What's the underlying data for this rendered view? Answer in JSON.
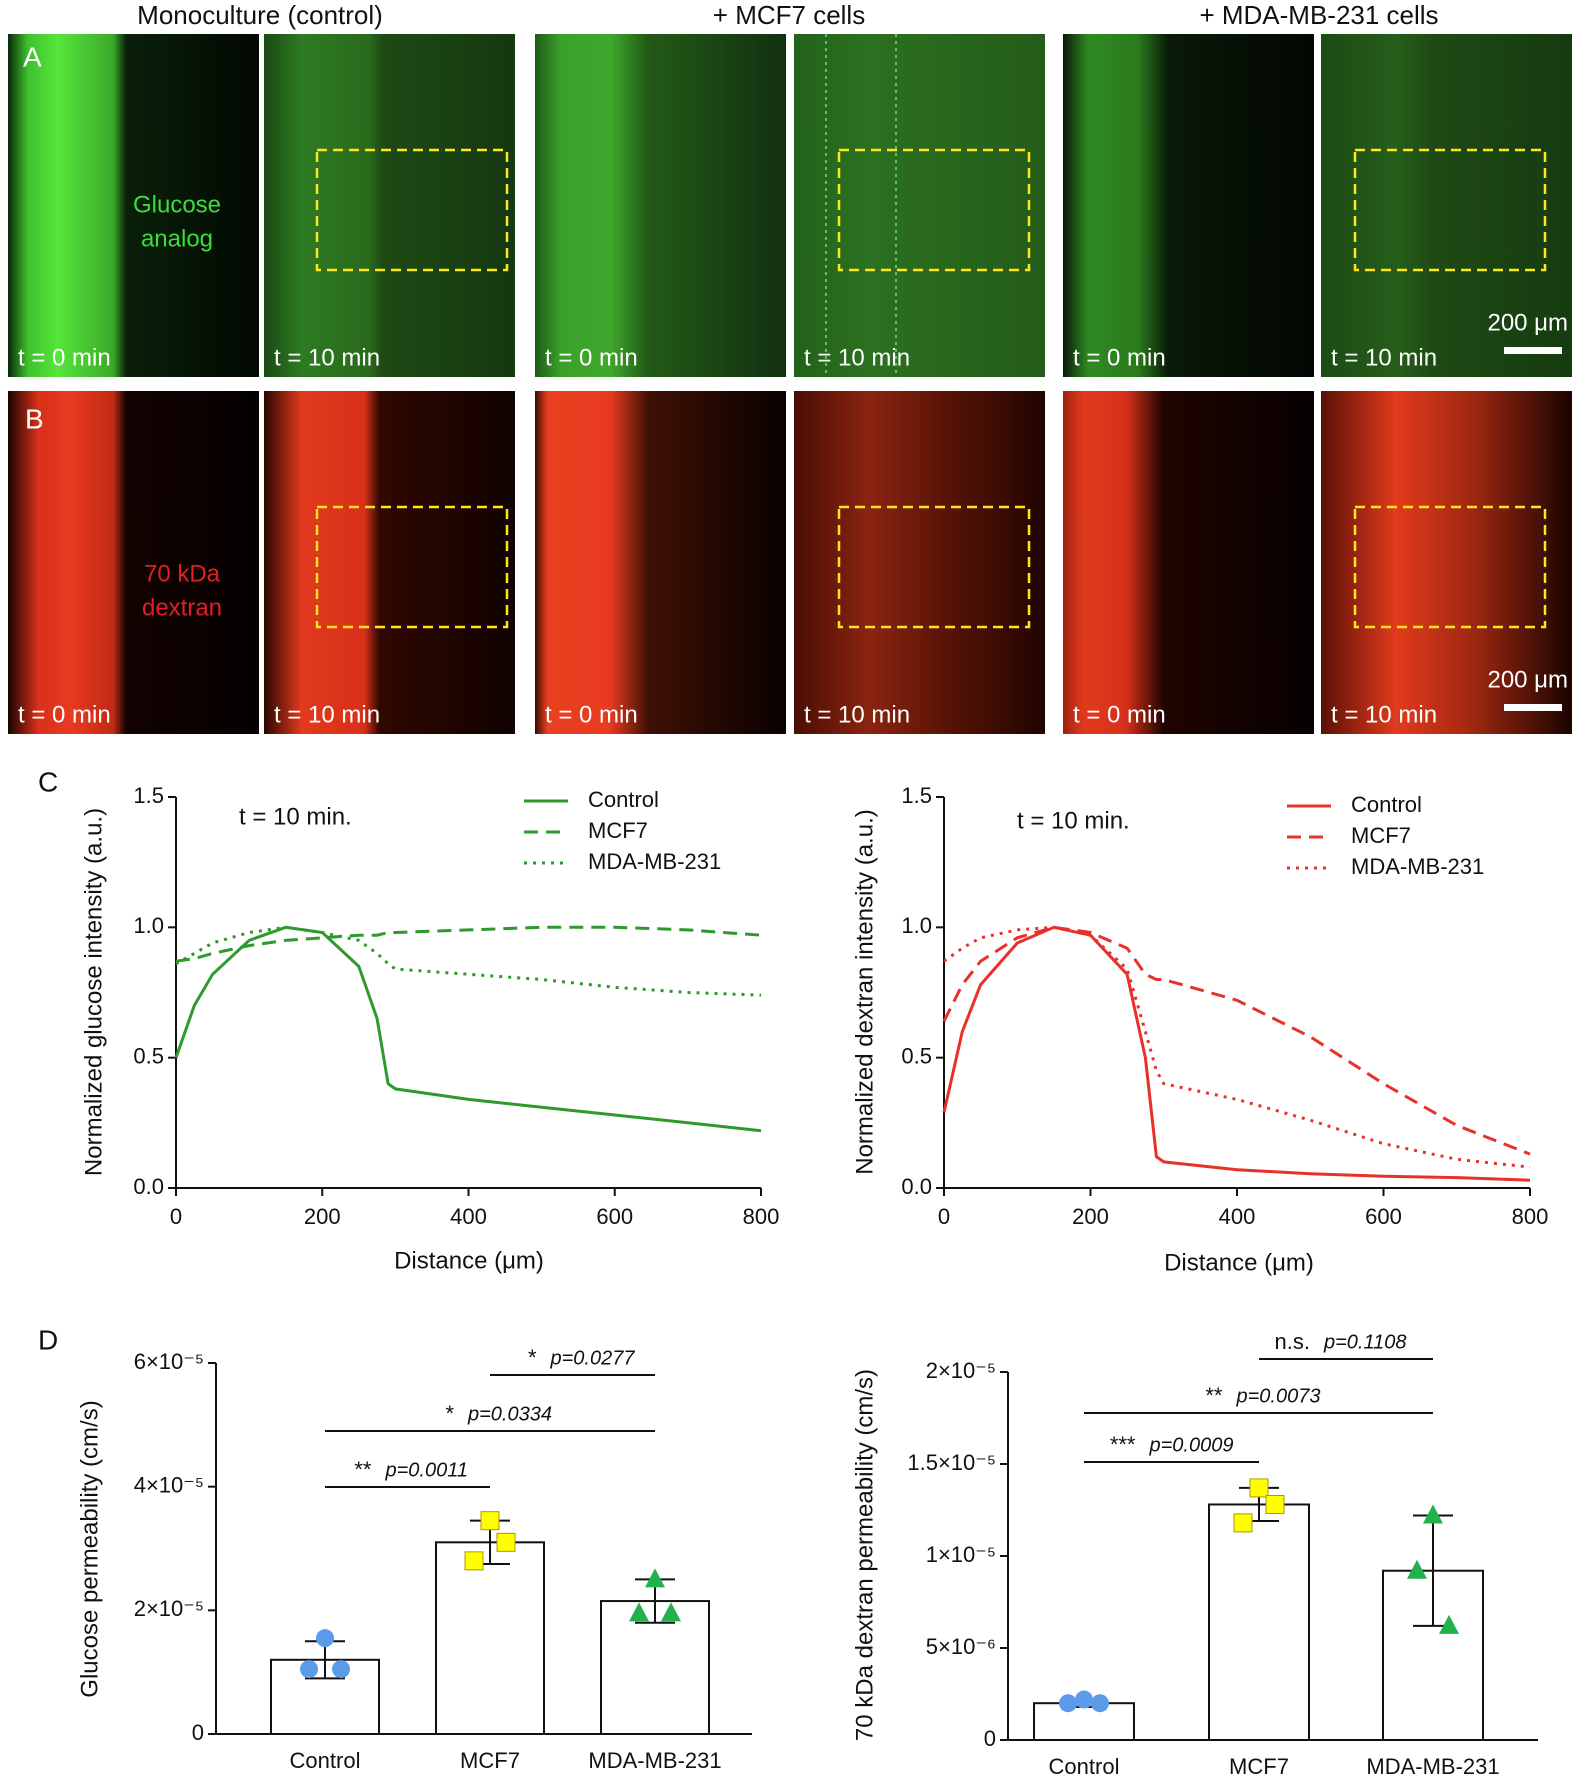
{
  "figure": {
    "headers": [
      "Monoculture (control)",
      "+ MCF7 cells",
      "+ MDA-MB-231 cells"
    ],
    "panel_labels": [
      "A",
      "B",
      "C",
      "D"
    ],
    "rows": [
      {
        "label_lines": [
          "Glucose",
          "analog"
        ],
        "time_labels": [
          "t = 0 min",
          "t = 10 min"
        ],
        "scale_bar": "200 μm"
      },
      {
        "label_lines": [
          "70 kDa",
          "dextran"
        ],
        "time_labels": [
          "t = 0 min",
          "t = 10 min"
        ],
        "scale_bar": "200 μm"
      }
    ]
  },
  "chart_data": [
    {
      "type": "line",
      "annotation": "t = 10 min.",
      "xlabel": "Distance (μm)",
      "ylabel": "Normalized glucose intensity (a.u.)",
      "x": [
        0,
        25,
        50,
        100,
        150,
        200,
        250,
        275,
        290,
        300,
        400,
        500,
        600,
        700,
        800
      ],
      "series": [
        {
          "name": "Control",
          "color": "#2e9a2e",
          "dash": "solid",
          "values": [
            0.5,
            0.7,
            0.82,
            0.95,
            1.0,
            0.98,
            0.85,
            0.65,
            0.4,
            0.38,
            0.34,
            0.31,
            0.28,
            0.25,
            0.22
          ]
        },
        {
          "name": "MCF7",
          "color": "#2e9a2e",
          "dash": "dashed",
          "values": [
            0.87,
            0.88,
            0.9,
            0.93,
            0.95,
            0.96,
            0.97,
            0.97,
            0.98,
            0.98,
            0.99,
            1.0,
            1.0,
            0.99,
            0.97
          ]
        },
        {
          "name": "MDA-MB-231",
          "color": "#2e9a2e",
          "dash": "dotted",
          "values": [
            0.86,
            0.9,
            0.94,
            0.98,
            1.0,
            0.98,
            0.95,
            0.9,
            0.86,
            0.84,
            0.82,
            0.8,
            0.77,
            0.75,
            0.74
          ]
        }
      ],
      "xlim": [
        0,
        800
      ],
      "ylim": [
        0,
        1.5
      ],
      "xticks": [
        0,
        200,
        400,
        600,
        800
      ],
      "yticks": [
        {
          "value": 0,
          "label": "0.0"
        },
        0.5,
        {
          "value": 1,
          "label": "1.0"
        },
        1.5
      ],
      "legend": "upper right"
    },
    {
      "type": "line",
      "annotation": "t = 10 min.",
      "xlabel": "Distance (μm)",
      "ylabel": "Normalized dextran intensity (a.u.)",
      "x": [
        0,
        25,
        50,
        100,
        150,
        200,
        250,
        275,
        290,
        300,
        400,
        500,
        600,
        700,
        800
      ],
      "series": [
        {
          "name": "Control",
          "color": "#e8312a",
          "dash": "solid",
          "values": [
            0.29,
            0.6,
            0.78,
            0.94,
            1.0,
            0.97,
            0.82,
            0.5,
            0.12,
            0.1,
            0.07,
            0.055,
            0.045,
            0.04,
            0.03
          ]
        },
        {
          "name": "MCF7",
          "color": "#e8312a",
          "dash": "dashed",
          "values": [
            0.64,
            0.78,
            0.87,
            0.96,
            1.0,
            0.98,
            0.92,
            0.82,
            0.8,
            0.8,
            0.72,
            0.58,
            0.4,
            0.24,
            0.13
          ]
        },
        {
          "name": "MDA-MB-231",
          "color": "#e8312a",
          "dash": "dotted",
          "values": [
            0.87,
            0.92,
            0.96,
            0.99,
            1.0,
            0.97,
            0.84,
            0.6,
            0.45,
            0.4,
            0.34,
            0.26,
            0.17,
            0.11,
            0.08
          ]
        }
      ],
      "xlim": [
        0,
        800
      ],
      "ylim": [
        0,
        1.5
      ],
      "xticks": [
        0,
        200,
        400,
        600,
        800
      ],
      "yticks": [
        {
          "value": 0,
          "label": "0.0"
        },
        0.5,
        {
          "value": 1,
          "label": "1.0"
        },
        1.5
      ],
      "legend": "upper right"
    },
    {
      "type": "bar",
      "ylabel": "Glucose permeability (cm/s)",
      "categories": [
        "Control",
        "MCF7",
        "MDA-MB-231"
      ],
      "values": [
        1.2e-05,
        3.1e-05,
        2.15e-05
      ],
      "errors": [
        3e-06,
        3.5e-06,
        3.5e-06
      ],
      "points": [
        [
          1.55e-05,
          1.05e-05,
          1.05e-05
        ],
        [
          3.45e-05,
          2.8e-05,
          3.1e-05
        ],
        [
          2.5e-05,
          1.95e-05,
          1.95e-05
        ]
      ],
      "markers": [
        "circle",
        "square",
        "triangle"
      ],
      "point_colors": [
        "#5b9bea",
        "#ffff00",
        "#22b14c"
      ],
      "ylim": [
        0,
        6e-05
      ],
      "yticks": [
        0,
        {
          "value": 2e-05,
          "label": "2×10⁻⁵"
        },
        {
          "value": 4e-05,
          "label": "4×10⁻⁵"
        },
        {
          "value": 6e-05,
          "label": "6×10⁻⁵"
        }
      ],
      "significance": [
        {
          "between": [
            0,
            1
          ],
          "stars": "**",
          "p": "p=0.0011"
        },
        {
          "between": [
            0,
            2
          ],
          "stars": "*",
          "p": "p=0.0334"
        },
        {
          "between": [
            1,
            2
          ],
          "stars": "*",
          "p": "p=0.0277"
        }
      ]
    },
    {
      "type": "bar",
      "ylabel": "70 kDa dextran permeability (cm/s)",
      "categories": [
        "Control",
        "MCF7",
        "MDA-MB-231"
      ],
      "values": [
        2e-06,
        1.28e-05,
        9.2e-06
      ],
      "errors": [
        2e-07,
        9e-07,
        3e-06
      ],
      "points": [
        [
          2.2e-06,
          2e-06,
          2e-06
        ],
        [
          1.37e-05,
          1.18e-05,
          1.28e-05
        ],
        [
          1.22e-05,
          9.2e-06,
          6.2e-06
        ]
      ],
      "markers": [
        "circle",
        "square",
        "triangle"
      ],
      "point_colors": [
        "#5b9bea",
        "#ffff00",
        "#22b14c"
      ],
      "ylim": [
        0,
        2e-05
      ],
      "yticks": [
        0,
        {
          "value": 5e-06,
          "label": "5×10⁻⁶"
        },
        {
          "value": 1e-05,
          "label": "1×10⁻⁵"
        },
        {
          "value": 1.5e-05,
          "label": "1.5×10⁻⁵"
        },
        {
          "value": 2e-05,
          "label": "2×10⁻⁵"
        }
      ],
      "significance": [
        {
          "between": [
            0,
            1
          ],
          "stars": "***",
          "p": "p=0.0009"
        },
        {
          "between": [
            0,
            2
          ],
          "stars": "**",
          "p": "p=0.0073"
        },
        {
          "between": [
            1,
            2
          ],
          "stars": "n.s.",
          "p": "p=0.1108"
        }
      ]
    }
  ]
}
